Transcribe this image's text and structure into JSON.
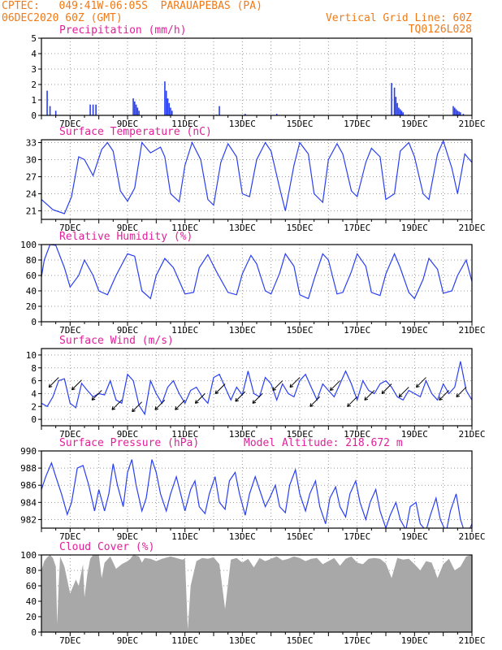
{
  "header": {
    "line1_left": "CPTEC:   049:41W-06:05S  PARAUAPEBAS (PA)",
    "line2_left": "06DEC2020 60Z (GMT)",
    "line1_right": "Vertical Grid Line: 60Z",
    "line2_right": "TQ0126L028"
  },
  "colors": {
    "header": "#f07a18",
    "title": "#e0209a",
    "series": "#2a3ff0",
    "cloud": "#a8a8a8",
    "grid": "#9a9a9a"
  },
  "chart_data": [
    {
      "id": "precip",
      "type": "bar",
      "title": "Precipitation (mm/h)",
      "unit": "mm/h",
      "ylim": [
        0,
        5
      ],
      "yticks": [
        0,
        1,
        2,
        3,
        4,
        5
      ],
      "x_label_days": [
        "7DEC",
        "9DEC",
        "11DEC",
        "13DEC",
        "15DEC",
        "17DEC",
        "19DEC",
        "21DEC"
      ],
      "x": [
        0.2,
        0.3,
        0.5,
        1.7,
        1.8,
        1.9,
        3.2,
        3.25,
        3.3,
        3.35,
        3.4,
        4.3,
        4.35,
        4.4,
        4.45,
        4.5,
        4.55,
        6.1,
        6.2,
        7.1,
        8.2,
        11.0,
        12.2,
        12.3,
        12.35,
        12.4,
        12.45,
        12.5,
        12.55,
        12.6,
        12.8,
        14.35,
        14.4,
        14.45,
        14.5,
        14.55,
        14.6,
        14.7
      ],
      "values": [
        1.6,
        0.6,
        0.3,
        0.7,
        0.7,
        0.7,
        1.1,
        0.9,
        0.7,
        0.5,
        0.3,
        2.2,
        1.6,
        1.1,
        0.8,
        0.5,
        0.3,
        0.05,
        0.6,
        0.1,
        0.1,
        0.05,
        2.1,
        1.8,
        1.2,
        0.8,
        0.5,
        0.4,
        0.3,
        0.2,
        0.05,
        0.6,
        0.5,
        0.4,
        0.3,
        0.25,
        0.2,
        0.1
      ]
    },
    {
      "id": "temp",
      "type": "line",
      "title": "Surface Temperature (nC)",
      "ylim": [
        19.5,
        33.5
      ],
      "yticks": [
        21,
        24,
        27,
        30,
        33
      ],
      "x_label_days": [
        "7DEC",
        "9DEC",
        "11DEC",
        "13DEC",
        "15DEC",
        "17DEC",
        "19DEC",
        "21DEC"
      ],
      "x": [
        0.0,
        0.4,
        0.8,
        1.05,
        1.3,
        1.5,
        1.8,
        2.1,
        2.3,
        2.5,
        2.75,
        3.0,
        3.25,
        3.5,
        3.8,
        4.15,
        4.3,
        4.5,
        4.8,
        5.0,
        5.25,
        5.55,
        5.8,
        6.0,
        6.25,
        6.5,
        6.8,
        7.0,
        7.25,
        7.5,
        7.8,
        8.0,
        8.3,
        8.5,
        8.8,
        9.0,
        9.3,
        9.5,
        9.8,
        10.0,
        10.3,
        10.5,
        10.8,
        11.0,
        11.3,
        11.5,
        11.8,
        12.0,
        12.3,
        12.5,
        12.8,
        13.0,
        13.3,
        13.5,
        13.8,
        14.0,
        14.3,
        14.5,
        14.75,
        15.0
      ],
      "values": [
        23.0,
        21.2,
        20.5,
        23.5,
        30.5,
        30.0,
        27.2,
        31.8,
        33.0,
        31.5,
        24.5,
        22.7,
        25.0,
        33.0,
        31.2,
        32.2,
        30.5,
        24.0,
        22.6,
        29.0,
        33.0,
        30.0,
        23.0,
        22.0,
        29.5,
        32.8,
        30.5,
        24.0,
        23.5,
        30.0,
        33.0,
        31.5,
        25.0,
        21.0,
        29.0,
        33.0,
        31.0,
        24.0,
        22.5,
        30.0,
        32.8,
        31.0,
        24.5,
        23.5,
        29.5,
        32.0,
        30.5,
        23.0,
        24.0,
        31.5,
        33.0,
        30.5,
        24.0,
        23.0,
        31.0,
        33.3,
        28.5,
        24.0,
        31.0,
        29.5
      ]
    },
    {
      "id": "rh",
      "type": "line",
      "title": "Relative Humidity (%)",
      "ylim": [
        0,
        100
      ],
      "yticks": [
        0,
        20,
        40,
        60,
        80,
        100
      ],
      "x_label_days": [
        "7DEC",
        "9DEC",
        "11DEC",
        "13DEC",
        "15DEC",
        "17DEC",
        "19DEC",
        "21DEC"
      ],
      "x": [
        0.0,
        0.1,
        0.3,
        0.5,
        0.8,
        1.0,
        1.3,
        1.5,
        1.8,
        2.0,
        2.3,
        2.6,
        3.0,
        3.25,
        3.5,
        3.8,
        4.0,
        4.3,
        4.6,
        5.0,
        5.3,
        5.5,
        5.8,
        6.1,
        6.5,
        6.8,
        7.0,
        7.3,
        7.5,
        7.8,
        8.0,
        8.3,
        8.5,
        8.8,
        9.0,
        9.3,
        9.5,
        9.8,
        10.0,
        10.3,
        10.5,
        10.8,
        11.0,
        11.3,
        11.5,
        11.8,
        12.0,
        12.3,
        12.5,
        12.8,
        13.0,
        13.3,
        13.5,
        13.8,
        14.0,
        14.3,
        14.5,
        14.8,
        15.0
      ],
      "values": [
        58,
        80,
        100,
        99,
        70,
        45,
        60,
        80,
        60,
        40,
        35,
        60,
        88,
        85,
        40,
        30,
        60,
        82,
        70,
        36,
        38,
        70,
        87,
        65,
        38,
        35,
        62,
        86,
        75,
        40,
        36,
        63,
        88,
        72,
        35,
        30,
        55,
        88,
        80,
        36,
        38,
        65,
        88,
        72,
        38,
        34,
        62,
        88,
        70,
        38,
        30,
        55,
        82,
        68,
        37,
        40,
        60,
        80,
        52
      ]
    },
    {
      "id": "wind",
      "type": "line",
      "title": "Surface Wind (m/s)",
      "ylim": [
        -1,
        11
      ],
      "yticks": [
        0,
        2,
        4,
        6,
        8,
        10
      ],
      "x_label_days": [
        "7DEC",
        "9DEC",
        "11DEC",
        "13DEC",
        "15DEC",
        "17DEC",
        "19DEC",
        "21DEC"
      ],
      "x": [
        0.0,
        0.2,
        0.4,
        0.6,
        0.8,
        1.0,
        1.2,
        1.4,
        1.6,
        1.8,
        2.0,
        2.2,
        2.4,
        2.6,
        2.8,
        3.0,
        3.2,
        3.4,
        3.6,
        3.8,
        4.0,
        4.2,
        4.4,
        4.6,
        4.8,
        5.0,
        5.2,
        5.4,
        5.6,
        5.8,
        6.0,
        6.2,
        6.4,
        6.6,
        6.8,
        7.0,
        7.2,
        7.4,
        7.6,
        7.8,
        8.0,
        8.2,
        8.4,
        8.6,
        8.8,
        9.0,
        9.2,
        9.4,
        9.6,
        9.8,
        10.0,
        10.2,
        10.4,
        10.6,
        10.8,
        11.0,
        11.2,
        11.4,
        11.6,
        11.8,
        12.0,
        12.2,
        12.4,
        12.6,
        12.8,
        13.0,
        13.2,
        13.4,
        13.6,
        13.8,
        14.0,
        14.2,
        14.4,
        14.6,
        14.8,
        15.0
      ],
      "values": [
        2.5,
        2.0,
        3.5,
        6.0,
        6.3,
        2.5,
        1.8,
        5.6,
        4.5,
        3.5,
        4.0,
        3.8,
        6.0,
        3.0,
        2.5,
        7.0,
        6.0,
        2.2,
        0.8,
        6.0,
        4.0,
        2.5,
        5.0,
        6.0,
        4.0,
        2.5,
        4.5,
        5.0,
        3.5,
        2.5,
        6.5,
        7.0,
        5.0,
        3.0,
        5.0,
        3.8,
        7.5,
        4.0,
        3.5,
        6.5,
        5.5,
        3.0,
        5.5,
        4.0,
        3.5,
        6.0,
        7.0,
        5.0,
        3.0,
        5.5,
        4.5,
        3.5,
        5.5,
        7.5,
        5.5,
        3.0,
        6.0,
        4.5,
        4.0,
        5.5,
        6.0,
        5.0,
        3.5,
        3.0,
        4.5,
        4.0,
        3.5,
        6.0,
        4.0,
        3.0,
        5.5,
        4.0,
        5.0,
        9.0,
        4.5,
        3.0
      ],
      "arrows_x": [
        0.6,
        1.4,
        2.1,
        2.8,
        3.5,
        4.3,
        5.0,
        5.7,
        6.4,
        7.1,
        7.7,
        8.4,
        9.0,
        9.7,
        10.4,
        11.0,
        11.6,
        12.2,
        12.8,
        13.4,
        14.2,
        14.8
      ]
    },
    {
      "id": "pressure",
      "type": "line",
      "title": "Surface Pressure (hPa)",
      "annotation": "Model Altitude: 218.672 m",
      "ylim": [
        981,
        990
      ],
      "yticks": [
        982,
        984,
        986,
        988,
        990
      ],
      "x_label_days": [
        "7DEC",
        "9DEC",
        "11DEC",
        "13DEC",
        "15DEC",
        "17DEC",
        "19DEC",
        "21DEC"
      ],
      "x": [
        0.0,
        0.15,
        0.35,
        0.5,
        0.7,
        0.9,
        1.05,
        1.25,
        1.45,
        1.65,
        1.85,
        2.0,
        2.2,
        2.35,
        2.5,
        2.65,
        2.85,
        3.0,
        3.15,
        3.3,
        3.5,
        3.65,
        3.85,
        4.0,
        4.15,
        4.35,
        4.5,
        4.7,
        4.85,
        5.0,
        5.2,
        5.35,
        5.5,
        5.7,
        5.85,
        6.05,
        6.2,
        6.4,
        6.55,
        6.75,
        6.9,
        7.1,
        7.25,
        7.45,
        7.6,
        7.8,
        7.95,
        8.15,
        8.3,
        8.5,
        8.65,
        8.85,
        9.0,
        9.2,
        9.35,
        9.55,
        9.7,
        9.9,
        10.05,
        10.25,
        10.4,
        10.6,
        10.75,
        10.95,
        11.1,
        11.3,
        11.45,
        11.65,
        11.8,
        12.0,
        12.15,
        12.35,
        12.5,
        12.7,
        12.85,
        13.05,
        13.2,
        13.4,
        13.55,
        13.75,
        13.9,
        14.1,
        14.25,
        14.45,
        14.6,
        14.8,
        15.0
      ],
      "values": [
        985.5,
        987.0,
        988.6,
        987.0,
        985.0,
        982.6,
        984.0,
        988.0,
        988.3,
        986.0,
        983.0,
        985.5,
        983.0,
        985.0,
        988.5,
        986.0,
        983.5,
        987.5,
        989.0,
        986.0,
        983.0,
        984.5,
        989.0,
        987.5,
        985.0,
        983.0,
        985.0,
        987.0,
        985.0,
        983.0,
        985.5,
        986.5,
        983.5,
        982.7,
        985.0,
        987.0,
        984.0,
        983.2,
        986.5,
        987.5,
        985.0,
        982.5,
        985.0,
        987.0,
        985.5,
        983.5,
        984.5,
        986.0,
        983.5,
        982.8,
        986.0,
        987.8,
        985.0,
        983.0,
        985.0,
        986.5,
        983.5,
        981.5,
        984.5,
        985.8,
        983.5,
        982.3,
        985.0,
        986.5,
        984.0,
        982.0,
        984.0,
        985.5,
        983.0,
        981.0,
        982.5,
        984.0,
        982.0,
        980.8,
        983.5,
        984.0,
        981.5,
        980.7,
        982.5,
        984.5,
        982.0,
        980.5,
        983.0,
        985.0,
        982.0,
        980.0,
        981.5
      ]
    },
    {
      "id": "cloud",
      "type": "area",
      "title": "Cloud Cover (%)",
      "ylim": [
        0,
        100
      ],
      "yticks": [
        0,
        20,
        40,
        60,
        80,
        100
      ],
      "x_label_days": [
        "7DEC",
        "9DEC",
        "11DEC",
        "13DEC",
        "15DEC",
        "17DEC",
        "19DEC",
        "21DEC"
      ],
      "x": [
        0.0,
        0.1,
        0.2,
        0.3,
        0.4,
        0.5,
        0.55,
        0.6,
        0.65,
        0.8,
        1.0,
        1.2,
        1.3,
        1.45,
        1.5,
        1.6,
        1.7,
        1.8,
        2.0,
        2.1,
        2.2,
        2.4,
        2.6,
        2.8,
        3.0,
        3.1,
        3.2,
        3.4,
        3.5,
        3.6,
        3.8,
        4.0,
        4.2,
        4.5,
        4.7,
        4.9,
        5.0,
        5.1,
        5.2,
        5.4,
        5.6,
        5.8,
        6.0,
        6.2,
        6.4,
        6.6,
        6.8,
        7.0,
        7.2,
        7.4,
        7.6,
        7.8,
        8.0,
        8.2,
        8.4,
        8.6,
        8.8,
        9.0,
        9.2,
        9.4,
        9.6,
        9.8,
        10.0,
        10.2,
        10.4,
        10.6,
        10.8,
        11.0,
        11.2,
        11.4,
        11.6,
        11.8,
        12.0,
        12.2,
        12.4,
        12.6,
        12.8,
        13.0,
        13.2,
        13.4,
        13.6,
        13.8,
        14.0,
        14.2,
        14.4,
        14.6,
        14.8,
        15.0
      ],
      "values": [
        80,
        92,
        97,
        100,
        96,
        85,
        10,
        60,
        98,
        85,
        50,
        68,
        60,
        88,
        45,
        75,
        95,
        100,
        100,
        70,
        90,
        98,
        82,
        88,
        92,
        95,
        100,
        98,
        90,
        96,
        95,
        92,
        95,
        98,
        96,
        94,
        95,
        3,
        60,
        92,
        96,
        95,
        97,
        88,
        30,
        94,
        96,
        90,
        95,
        84,
        96,
        92,
        95,
        98,
        93,
        95,
        98,
        96,
        92,
        95,
        96,
        88,
        92,
        96,
        86,
        95,
        98,
        90,
        88,
        95,
        96,
        95,
        89,
        70,
        96,
        94,
        95,
        88,
        80,
        92,
        90,
        70,
        88,
        95,
        80,
        85,
        98,
        100
      ]
    }
  ]
}
